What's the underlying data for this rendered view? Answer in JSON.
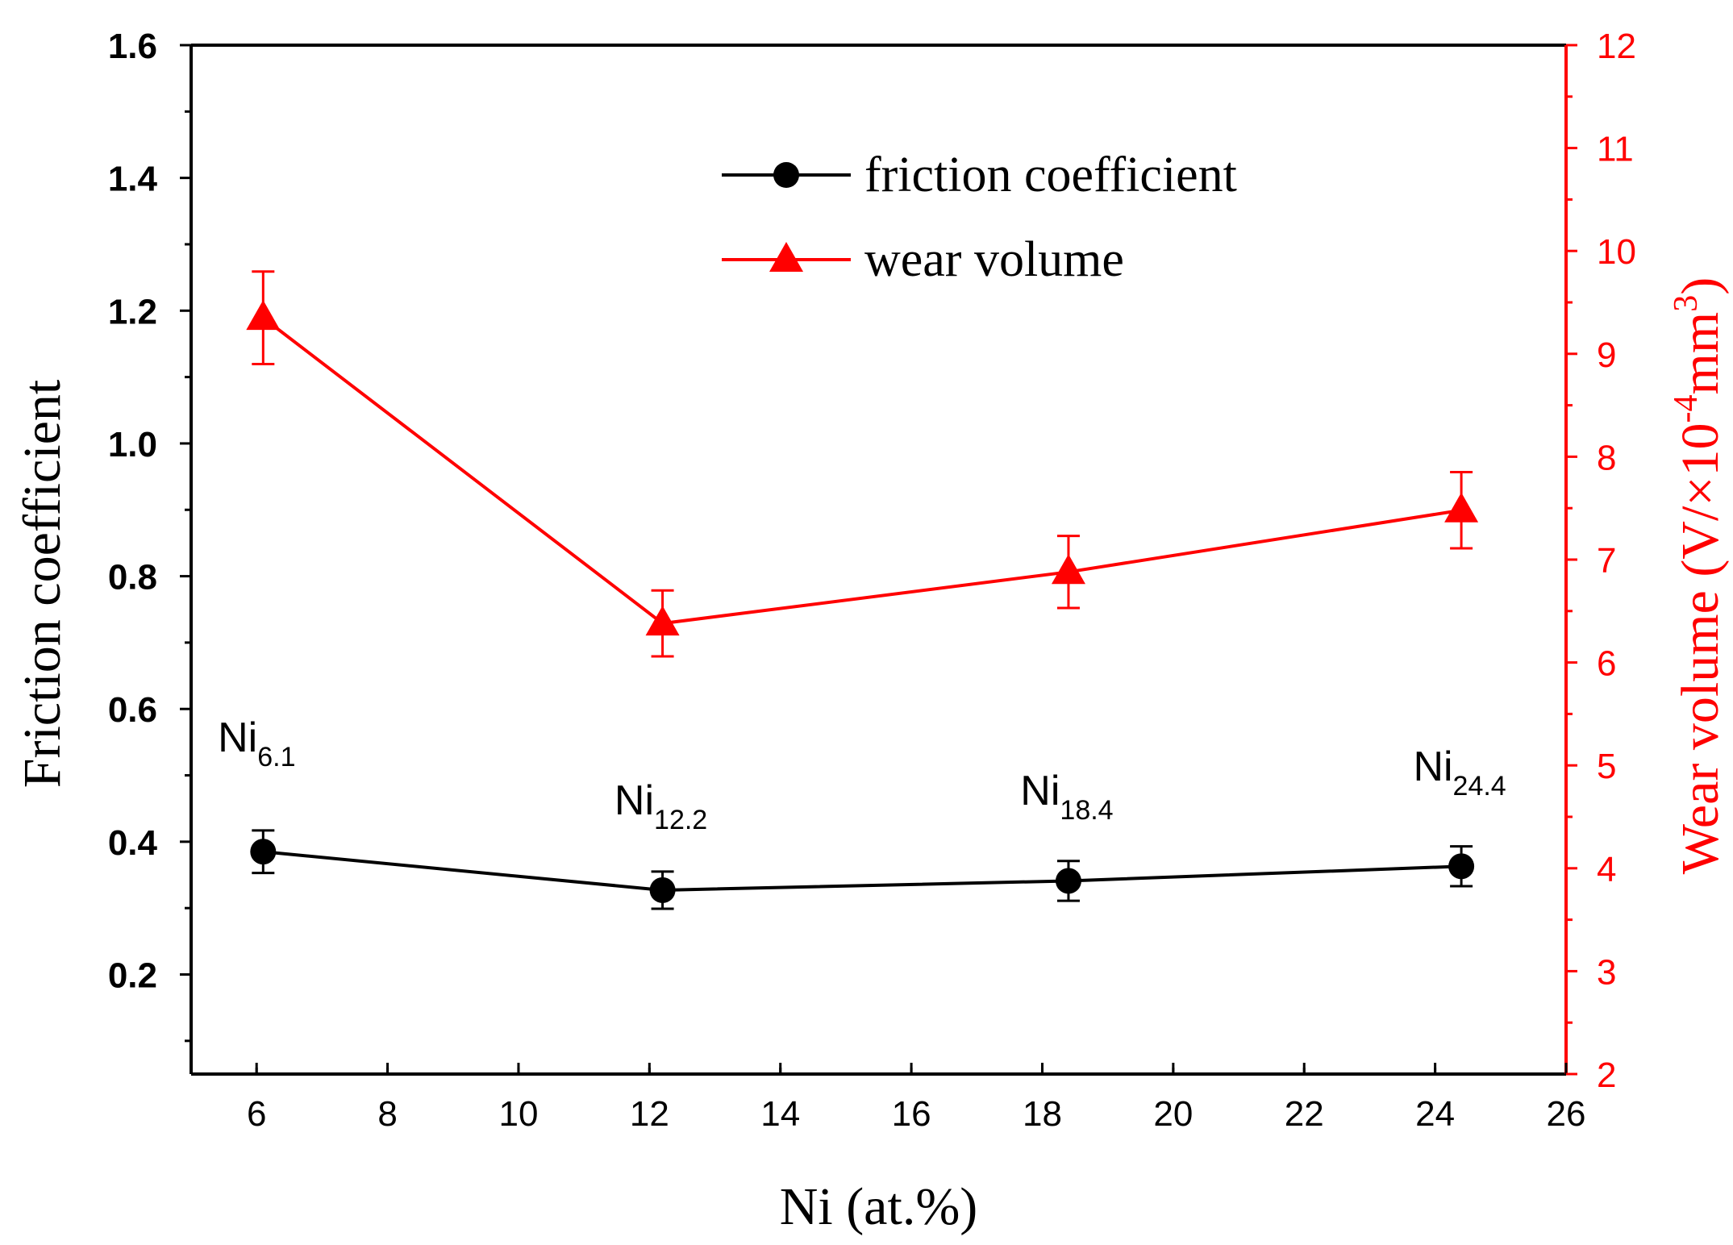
{
  "chart_data": {
    "type": "line",
    "title": "",
    "xlabel": "Ni (at.%)",
    "ylabel_left": "Friction coefficient",
    "ylabel_right": "Wear volume (V/×10-4mm3)",
    "ylabel_right_parts": [
      "Wear volume (V/",
      "×",
      "10",
      "-4",
      "mm",
      "3",
      ")"
    ],
    "xlim": [
      5,
      26
    ],
    "ylim_left": [
      0.05,
      1.6
    ],
    "ylim_right": [
      2,
      12
    ],
    "x_ticks": [
      6,
      8,
      10,
      12,
      14,
      16,
      18,
      20,
      22,
      24,
      26
    ],
    "y_ticks_left": [
      0.2,
      0.4,
      0.6,
      0.8,
      1.0,
      1.2,
      1.4,
      1.6
    ],
    "y_ticks_right": [
      2,
      3,
      4,
      5,
      6,
      7,
      8,
      9,
      10,
      11,
      12
    ],
    "series": [
      {
        "name": "friction coefficient",
        "axis": "left",
        "color": "#000000",
        "marker": "circle",
        "x": [
          6.1,
          12.2,
          18.4,
          24.4
        ],
        "values": [
          0.385,
          0.327,
          0.341,
          0.363
        ],
        "errors": [
          0.032,
          0.028,
          0.03,
          0.03
        ]
      },
      {
        "name": "wear volume",
        "axis": "right",
        "color": "#ff0000",
        "marker": "triangle",
        "x": [
          6.1,
          12.2,
          18.4,
          24.4
        ],
        "values": [
          9.35,
          6.38,
          6.88,
          7.48
        ],
        "errors": [
          0.45,
          0.32,
          0.35,
          0.37
        ]
      }
    ],
    "annotations": [
      {
        "base": "Ni",
        "sub": "6.1",
        "x": 6.1
      },
      {
        "base": "Ni",
        "sub": "12.2",
        "x": 12.2
      },
      {
        "base": "Ni",
        "sub": "18.4",
        "x": 18.4
      },
      {
        "base": "Ni",
        "sub": "24.4",
        "x": 24.4
      }
    ],
    "legend": {
      "position": "top-center",
      "entries": [
        "friction coefficient",
        "wear volume"
      ]
    }
  }
}
